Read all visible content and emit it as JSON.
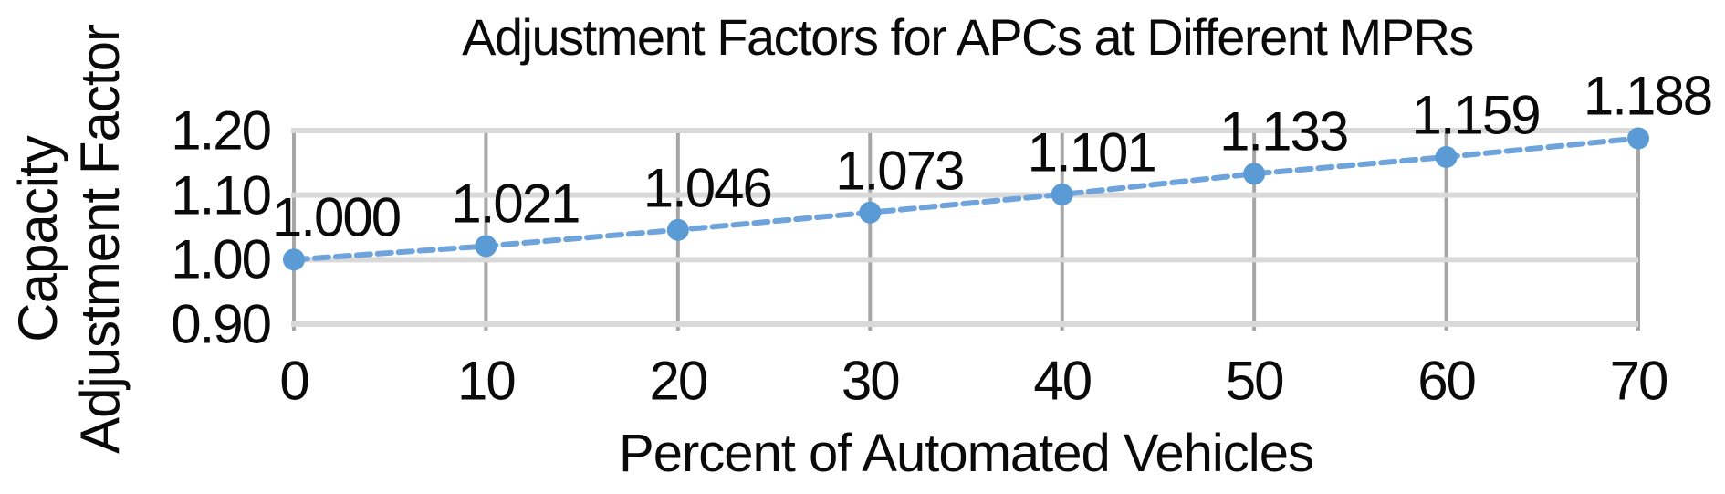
{
  "chart_data": {
    "type": "line",
    "title": "Adjustment Factors for APCs at Different MPRs",
    "xlabel": "Percent of Automated Vehicles",
    "ylabel": "Capacity Adjustment Factor",
    "ylabel_lines": [
      "Capacity",
      "Adjustment Factor"
    ],
    "series": [
      {
        "name": "Capacity Adjustment Factor",
        "x": [
          0,
          10,
          20,
          30,
          40,
          50,
          60,
          70
        ],
        "values": [
          1.0,
          1.021,
          1.046,
          1.073,
          1.101,
          1.133,
          1.159,
          1.188
        ],
        "data_labels": [
          "1.000",
          "1.021",
          "1.046",
          "1.073",
          "1.101",
          "1.133",
          "1.159",
          "1.188"
        ],
        "marker": "circle",
        "line_style": "dashed",
        "marker_color": "#5B9BD5",
        "line_color": "#6FA3DB"
      }
    ],
    "xlim": [
      0,
      70
    ],
    "ylim": [
      0.9,
      1.2
    ],
    "xticks": {
      "values": [
        0,
        10,
        20,
        30,
        40,
        50,
        60,
        70
      ],
      "labels": [
        "0",
        "10",
        "20",
        "30",
        "40",
        "50",
        "60",
        "70"
      ]
    },
    "yticks": {
      "values": [
        1.2,
        1.1,
        1.0,
        0.9
      ],
      "labels": [
        "1.20",
        "1.10",
        "1.00",
        "0.90"
      ]
    },
    "grid": {
      "horizontal": true,
      "vertical": true,
      "h_color": "#D9D9D9",
      "v_color": "#A6A6A6"
    },
    "legend": "none",
    "background": "#FFFFFF",
    "text_color": "#0A0A0A"
  }
}
